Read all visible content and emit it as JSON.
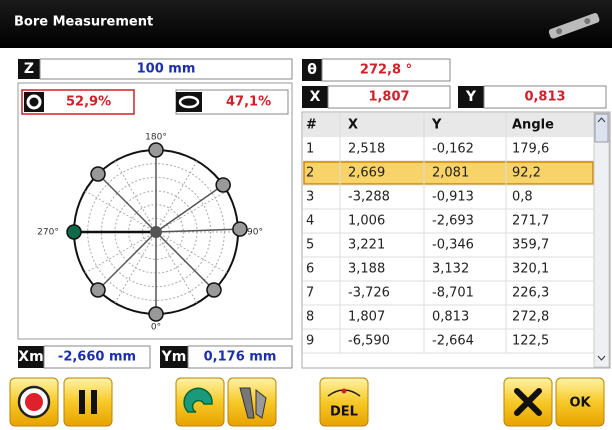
{
  "header": {
    "title": "Bore Measurement"
  },
  "z": {
    "label": "Z",
    "value": "100 mm"
  },
  "theta": {
    "label": "θ",
    "value": "272,8 °"
  },
  "circularity": {
    "circle": "52,9%",
    "ellipse": "47,1%"
  },
  "polar_labels": {
    "top": "180°",
    "bottom": "0°",
    "left": "270°",
    "right": "90°"
  },
  "x": {
    "label": "X",
    "value": "1,807"
  },
  "y": {
    "label": "Y",
    "value": "0,813"
  },
  "table": {
    "columns": [
      "#",
      "X",
      "Y",
      "Angle"
    ],
    "rows": [
      [
        "1",
        "2,518",
        "-0,162",
        "179,6"
      ],
      [
        "2",
        "2,669",
        "2,081",
        "92,2"
      ],
      [
        "3",
        "-3,288",
        "-0,913",
        "0,8"
      ],
      [
        "4",
        "1,006",
        "-2,693",
        "271,7"
      ],
      [
        "5",
        "3,221",
        "-0,346",
        "359,7"
      ],
      [
        "6",
        "3,188",
        "3,132",
        "320,1"
      ],
      [
        "7",
        "-3,726",
        "-8,701",
        "226,3"
      ],
      [
        "8",
        "1,807",
        "0,813",
        "272,8"
      ],
      [
        "9",
        "-6,590",
        "-2,664",
        "122,5"
      ]
    ]
  },
  "xm": {
    "label": "Xm",
    "value": "-2,660 mm"
  },
  "ym": {
    "label": "Ym",
    "value": "0,176 mm"
  },
  "buttons": {
    "delete": "DEL",
    "ok": "OK"
  }
}
